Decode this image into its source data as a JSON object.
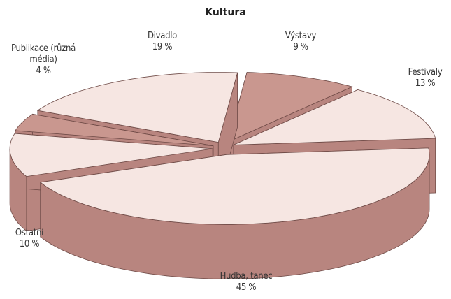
{
  "chart_data": {
    "type": "pie",
    "title": "Kultura",
    "categories": [
      "Divadlo",
      "Výstavy",
      "Festivaly",
      "Hudba, tanec",
      "Ostatní",
      "Publikace (různá média)"
    ],
    "values": [
      19,
      9,
      13,
      45,
      10,
      4
    ],
    "value_labels": [
      "19 %",
      "9 %",
      "13 %",
      "45 %",
      "10 %",
      "4 %"
    ],
    "colors": [
      "#f6e6e2",
      "#c9978f",
      "#f6e6e2",
      "#f6e6e2",
      "#f6e6e2",
      "#c9978f"
    ],
    "side_color": "#b8857f"
  }
}
